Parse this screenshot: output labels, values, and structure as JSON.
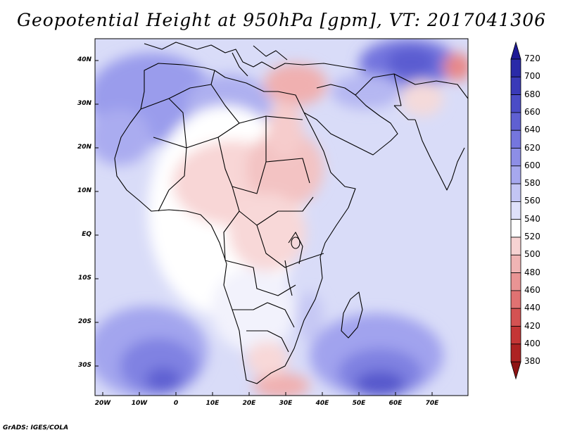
{
  "title": "Geopotential Height at 950hPa [gpm], VT: 2017041306",
  "credit": "GrADS: IGES/COLA",
  "map": {
    "lat_labels": [
      "40N",
      "30N",
      "20N",
      "10N",
      "EQ",
      "10S",
      "20S",
      "30S"
    ],
    "lon_labels": [
      "20W",
      "10W",
      "0",
      "10E",
      "20E",
      "30E",
      "40E",
      "50E",
      "60E",
      "70E"
    ]
  },
  "colorbar": {
    "labels": [
      "720",
      "700",
      "680",
      "660",
      "640",
      "620",
      "600",
      "580",
      "560",
      "540",
      "520",
      "500",
      "480",
      "460",
      "440",
      "420",
      "400",
      "380"
    ],
    "colors": [
      "#1f1a96",
      "#2a2aa8",
      "#3a3ab8",
      "#4b4cc6",
      "#5f60d2",
      "#7576de",
      "#8d8ee6",
      "#a6a8ee",
      "#c3c5f4",
      "#dfe1fa",
      "#ffffff",
      "#f7d3d3",
      "#f0b4b4",
      "#e99494",
      "#e07272",
      "#d45252",
      "#c43636",
      "#ad2222",
      "#8e1313"
    ]
  },
  "colors": {
    "ocean_base": "#d8dbf8",
    "land_base": "#fbe2e2"
  }
}
